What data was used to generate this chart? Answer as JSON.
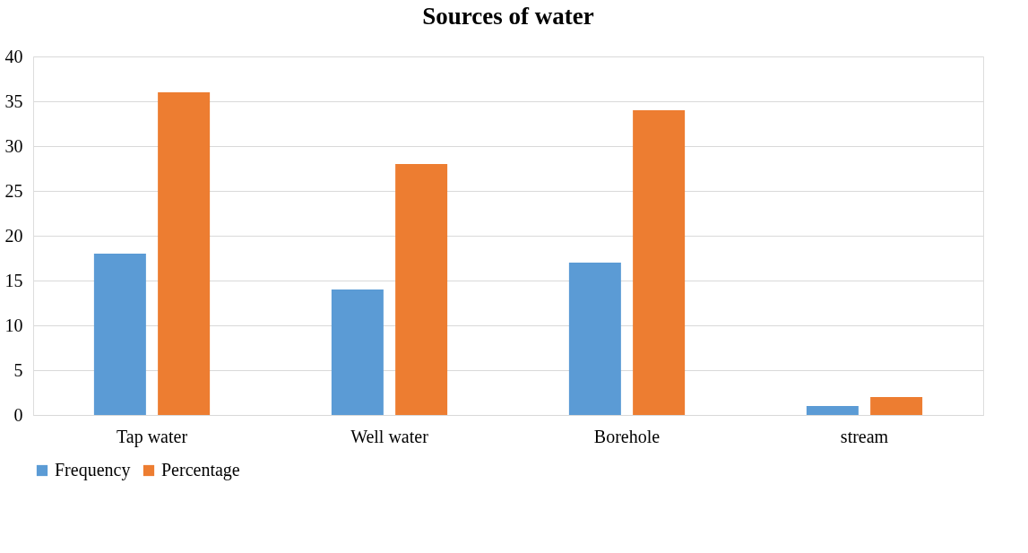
{
  "chart_data": {
    "type": "bar",
    "title": "Sources of water",
    "categories": [
      "Tap water",
      "Well water",
      "Borehole",
      "stream"
    ],
    "series": [
      {
        "name": "Frequency",
        "color": "#5b9bd5",
        "values": [
          18,
          14,
          17,
          1
        ]
      },
      {
        "name": "Percentage",
        "color": "#ed7d31",
        "values": [
          36,
          28,
          34,
          2
        ]
      }
    ],
    "ylim": [
      0,
      40
    ],
    "yticks": [
      0,
      5,
      10,
      15,
      20,
      25,
      30,
      35,
      40
    ],
    "grid": "y",
    "legend": "bottom"
  }
}
